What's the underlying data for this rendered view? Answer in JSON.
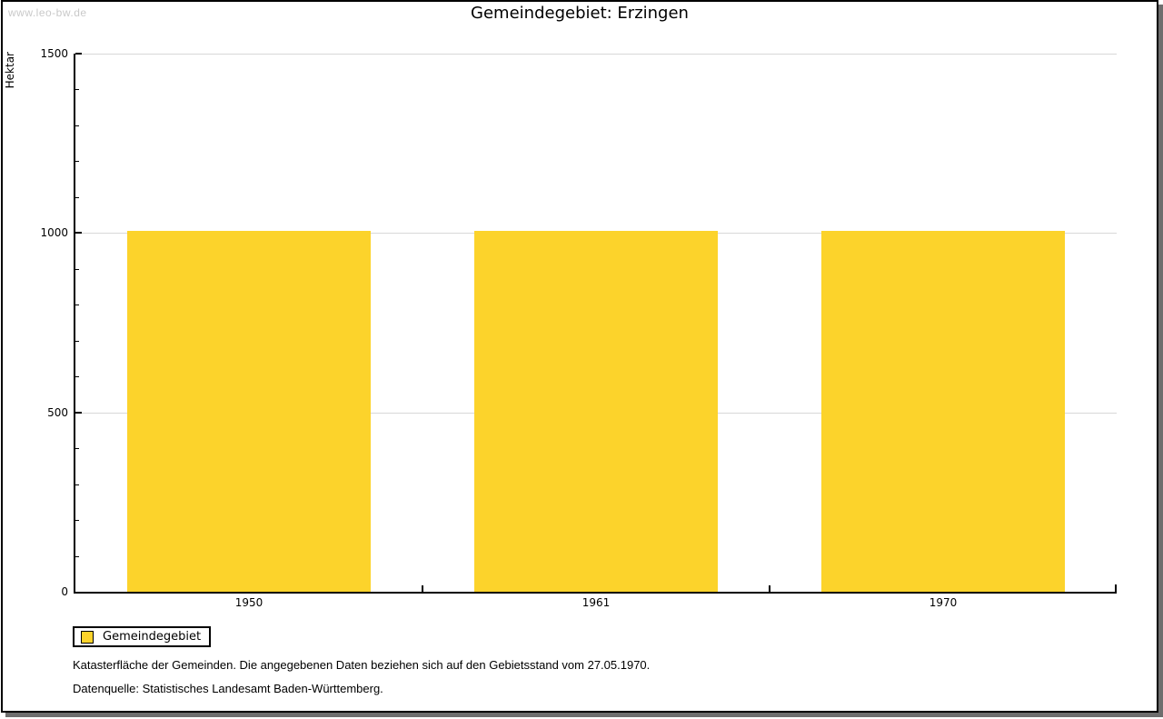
{
  "watermark": "www.leo-bw.de",
  "title": "Gemeindegebiet: Erzingen",
  "chart_data": {
    "type": "bar",
    "title": "Gemeindegebiet: Erzingen",
    "categories": [
      "1950",
      "1961",
      "1970"
    ],
    "series": [
      {
        "name": "Gemeindegebiet",
        "values": [
          1005,
          1005,
          1005
        ]
      }
    ],
    "xlabel": "",
    "ylabel": "Hektar",
    "ylim": [
      0,
      1500
    ],
    "yticks": [
      0,
      500,
      1000,
      1500
    ],
    "minor_tick_step": 100,
    "grid": true,
    "legend_position": "bottom-left",
    "bar_color": "#FCD32B"
  },
  "legend": {
    "items": [
      {
        "label": "Gemeindegebiet",
        "color": "#FCD32B"
      }
    ]
  },
  "footnotes": [
    "Katasterfläche der Gemeinden. Die angegebenen Daten beziehen sich auf den Gebietsstand vom 27.05.1970.",
    "Datenquelle: Statistisches Landesamt Baden-Württemberg."
  ],
  "colors": {
    "bar": "#FCD32B",
    "grid": "#D8D8D8",
    "axis": "#000000",
    "frame_shadow": "#6E6E6E",
    "watermark": "#C9C9C9",
    "background": "#FFFFFF"
  }
}
